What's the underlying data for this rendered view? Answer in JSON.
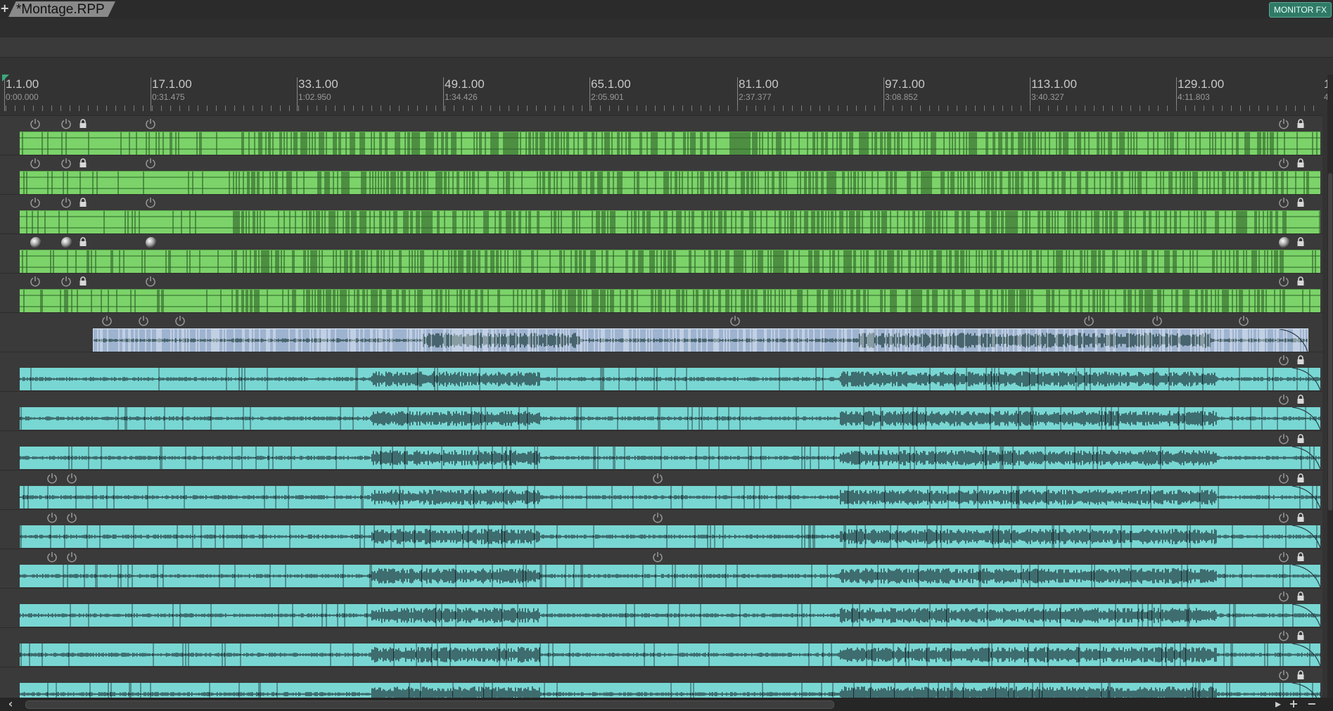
{
  "tab": {
    "title": "*Montage.RPP",
    "add_label": "+"
  },
  "monitor_fx": {
    "label": "MONITOR FX"
  },
  "ruler": {
    "markers": [
      {
        "beat": "1.1.00",
        "time": "0:00.000"
      },
      {
        "beat": "17.1.00",
        "time": "0:31.475"
      },
      {
        "beat": "33.1.00",
        "time": "1:02.950"
      },
      {
        "beat": "49.1.00",
        "time": "1:34.426"
      },
      {
        "beat": "65.1.00",
        "time": "2:05.901"
      },
      {
        "beat": "81.1.00",
        "time": "2:37.377"
      },
      {
        "beat": "97.1.00",
        "time": "3:08.852"
      },
      {
        "beat": "113.1.00",
        "time": "3:40.327"
      },
      {
        "beat": "129.1.00",
        "time": "4:11.803"
      },
      {
        "beat": "1",
        "time": "4"
      }
    ]
  },
  "colors": {
    "green_item": "#7cd36a",
    "cyan_item": "#78d7d3",
    "blue_item": "#9eb3cf",
    "monitor_fx": "#2f7a66",
    "waveform": "#2b4a4e"
  },
  "tracks": [
    {
      "color": "green",
      "icons": [
        "power-icon",
        "power-icon",
        "lock-icon",
        "power-icon"
      ]
    },
    {
      "color": "green",
      "icons": [
        "power-icon",
        "power-icon",
        "lock-icon",
        "power-icon"
      ]
    },
    {
      "color": "green",
      "icons": [
        "power-icon",
        "power-icon",
        "lock-icon",
        "power-icon"
      ]
    },
    {
      "color": "green",
      "icons": [
        "sphere-icon",
        "sphere-icon",
        "lock-icon",
        "sphere-icon"
      ]
    },
    {
      "color": "green",
      "icons": [
        "power-icon",
        "power-icon",
        "lock-icon",
        "power-icon"
      ]
    },
    {
      "color": "blue",
      "icons": [
        "power-icon",
        "power-icon",
        "power-icon",
        "power-icon",
        "power-icon",
        "power-icon",
        "power-icon"
      ]
    },
    {
      "color": "cyan",
      "icons": [
        "power-icon",
        "lock-icon"
      ]
    },
    {
      "color": "cyan",
      "icons": [
        "power-icon",
        "lock-icon"
      ]
    },
    {
      "color": "cyan",
      "icons": [
        "power-icon",
        "lock-icon"
      ]
    },
    {
      "color": "cyan",
      "icons": [
        "power-icon",
        "power-icon",
        "power-icon",
        "lock-icon"
      ]
    },
    {
      "color": "cyan",
      "icons": [
        "power-icon",
        "power-icon",
        "power-icon",
        "lock-icon"
      ]
    },
    {
      "color": "cyan",
      "icons": [
        "power-icon",
        "power-icon",
        "power-icon",
        "lock-icon"
      ]
    },
    {
      "color": "cyan",
      "icons": [
        "power-icon",
        "lock-icon"
      ]
    },
    {
      "color": "cyan",
      "icons": [
        "power-icon",
        "lock-icon"
      ]
    },
    {
      "color": "cyan",
      "icons": [
        "power-icon",
        "lock-icon"
      ]
    }
  ]
}
